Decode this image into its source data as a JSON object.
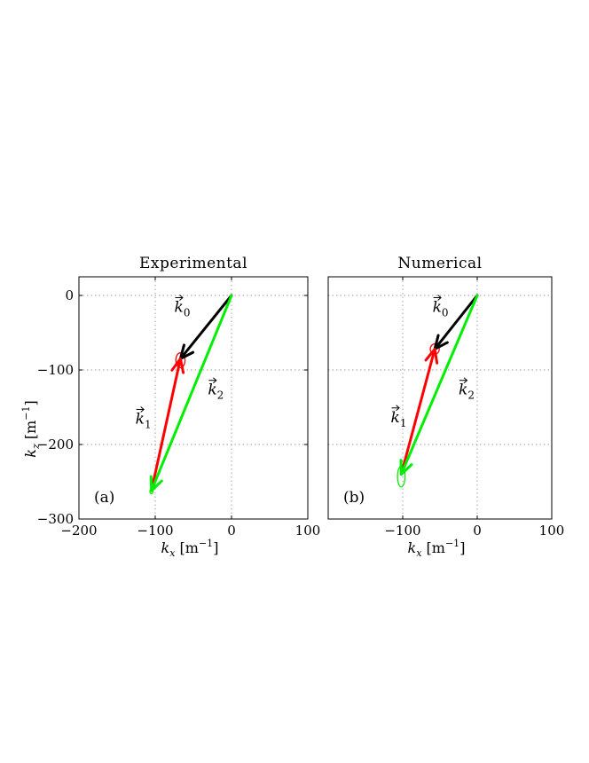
{
  "chart_data": [
    {
      "type": "line",
      "panel": "a",
      "title": "Experimental",
      "panel_label": "(a)",
      "xlabel": "k_x [m^-1]",
      "ylabel": "k_z [m^-1]",
      "xlim": [
        -200,
        100
      ],
      "ylim": [
        -300,
        25
      ],
      "xticks": [
        -200,
        -100,
        0,
        100
      ],
      "yticks": [
        0,
        -100,
        -200,
        -300
      ],
      "xtick_labels": [
        "−200",
        "−100",
        "0",
        "100"
      ],
      "ytick_labels": [
        "0",
        "−100",
        "−200",
        "−300"
      ],
      "grid": true,
      "vectors": [
        {
          "name": "k0",
          "label": "k0",
          "color": "#000000",
          "from": [
            0,
            0
          ],
          "to": [
            -67,
            -85
          ],
          "label_at": [
            -75,
            -22
          ]
        },
        {
          "name": "k1",
          "label": "k1",
          "color": "#ff0000",
          "from": [
            -105,
            -262
          ],
          "to": [
            -67,
            -85
          ],
          "label_at": [
            -126,
            -172
          ]
        },
        {
          "name": "k2",
          "label": "k2",
          "color": "#00ee00",
          "from": [
            0,
            0
          ],
          "to": [
            -105,
            -262
          ],
          "label_at": [
            -31,
            -133
          ]
        }
      ],
      "ellipses": [
        {
          "color": "#ff0000",
          "center": [
            -67,
            -87
          ],
          "rx": 6,
          "ry": 10
        },
        {
          "color": "#00ee00",
          "center": [
            -105,
            -263
          ],
          "rx": 2,
          "ry": 3
        }
      ]
    },
    {
      "type": "line",
      "panel": "b",
      "title": "Numerical",
      "panel_label": "(b)",
      "xlabel": "k_x [m^-1]",
      "ylabel": "",
      "xlim": [
        -200,
        100
      ],
      "ylim": [
        -300,
        25
      ],
      "xticks": [
        -100,
        0,
        100
      ],
      "yticks": [],
      "xtick_labels": [
        "−100",
        "0",
        "100"
      ],
      "ytick_labels": [],
      "grid": true,
      "vectors": [
        {
          "name": "k0",
          "label": "k0",
          "color": "#000000",
          "from": [
            0,
            0
          ],
          "to": [
            -57,
            -72
          ],
          "label_at": [
            -60,
            -22
          ]
        },
        {
          "name": "k1",
          "label": "k1",
          "color": "#ff0000",
          "from": [
            -102,
            -240
          ],
          "to": [
            -57,
            -72
          ],
          "label_at": [
            -116,
            -170
          ]
        },
        {
          "name": "k2",
          "label": "k2",
          "color": "#00ee00",
          "from": [
            0,
            0
          ],
          "to": [
            -102,
            -240
          ],
          "label_at": [
            -25,
            -133
          ]
        }
      ],
      "ellipses": [
        {
          "color": "#ff0000",
          "center": [
            -57,
            -72
          ],
          "rx": 6,
          "ry": 7
        },
        {
          "color": "#00ee00",
          "center": [
            -102,
            -243
          ],
          "rx": 5,
          "ry": 14
        }
      ]
    }
  ]
}
